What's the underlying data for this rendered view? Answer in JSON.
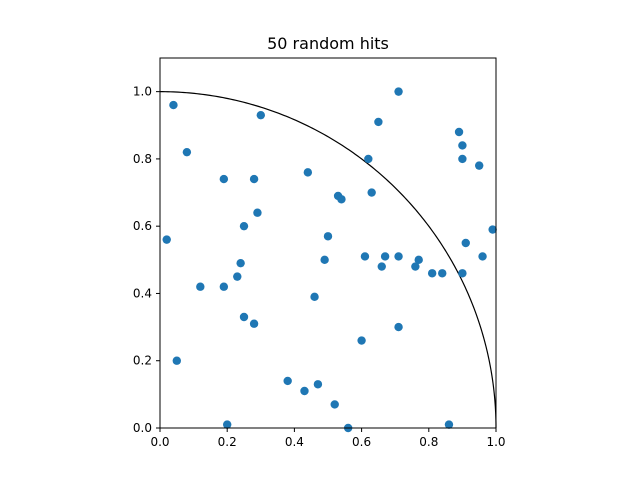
{
  "chart_data": {
    "type": "scatter",
    "title": "50 random hits",
    "xlabel": "",
    "ylabel": "",
    "xlim": [
      0,
      1
    ],
    "ylim": [
      0,
      1.1
    ],
    "x_ticks": [
      "0.0",
      "0.2",
      "0.4",
      "0.6",
      "0.8",
      "1.0"
    ],
    "y_ticks": [
      "0.0",
      "0.2",
      "0.4",
      "0.6",
      "0.8",
      "1.0"
    ],
    "grid": false,
    "marker_color": "#1f77b4",
    "curve": {
      "type": "quarter-circle",
      "radius": 1,
      "color": "#000000"
    },
    "points": [
      {
        "x": 0.04,
        "y": 0.96
      },
      {
        "x": 0.08,
        "y": 0.82
      },
      {
        "x": 0.02,
        "y": 0.56
      },
      {
        "x": 0.05,
        "y": 0.2
      },
      {
        "x": 0.12,
        "y": 0.42
      },
      {
        "x": 0.19,
        "y": 0.74
      },
      {
        "x": 0.19,
        "y": 0.42
      },
      {
        "x": 0.2,
        "y": 0.01
      },
      {
        "x": 0.23,
        "y": 0.45
      },
      {
        "x": 0.24,
        "y": 0.49
      },
      {
        "x": 0.25,
        "y": 0.6
      },
      {
        "x": 0.25,
        "y": 0.33
      },
      {
        "x": 0.28,
        "y": 0.74
      },
      {
        "x": 0.28,
        "y": 0.31
      },
      {
        "x": 0.29,
        "y": 0.64
      },
      {
        "x": 0.3,
        "y": 0.93
      },
      {
        "x": 0.38,
        "y": 0.14
      },
      {
        "x": 0.43,
        "y": 0.11
      },
      {
        "x": 0.44,
        "y": 0.76
      },
      {
        "x": 0.46,
        "y": 0.39
      },
      {
        "x": 0.47,
        "y": 0.13
      },
      {
        "x": 0.49,
        "y": 0.5
      },
      {
        "x": 0.5,
        "y": 0.57
      },
      {
        "x": 0.52,
        "y": 0.07
      },
      {
        "x": 0.53,
        "y": 0.69
      },
      {
        "x": 0.54,
        "y": 0.68
      },
      {
        "x": 0.56,
        "y": 0.0
      },
      {
        "x": 0.6,
        "y": 0.26
      },
      {
        "x": 0.61,
        "y": 0.51
      },
      {
        "x": 0.62,
        "y": 0.8
      },
      {
        "x": 0.63,
        "y": 0.7
      },
      {
        "x": 0.65,
        "y": 0.91
      },
      {
        "x": 0.66,
        "y": 0.48
      },
      {
        "x": 0.67,
        "y": 0.51
      },
      {
        "x": 0.71,
        "y": 1.0
      },
      {
        "x": 0.71,
        "y": 0.51
      },
      {
        "x": 0.71,
        "y": 0.3
      },
      {
        "x": 0.76,
        "y": 0.48
      },
      {
        "x": 0.77,
        "y": 0.5
      },
      {
        "x": 0.81,
        "y": 0.46
      },
      {
        "x": 0.84,
        "y": 0.46
      },
      {
        "x": 0.86,
        "y": 0.01
      },
      {
        "x": 0.89,
        "y": 0.88
      },
      {
        "x": 0.9,
        "y": 0.84
      },
      {
        "x": 0.9,
        "y": 0.8
      },
      {
        "x": 0.9,
        "y": 0.46
      },
      {
        "x": 0.91,
        "y": 0.55
      },
      {
        "x": 0.95,
        "y": 0.78
      },
      {
        "x": 0.96,
        "y": 0.51
      },
      {
        "x": 0.99,
        "y": 0.59
      }
    ]
  }
}
